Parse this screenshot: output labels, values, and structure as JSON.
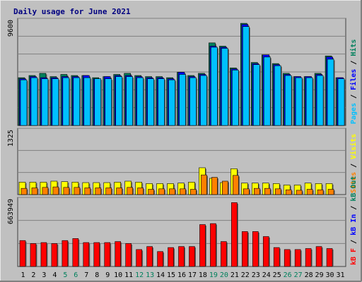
{
  "chart_data": {
    "type": "bar",
    "title": "Daily usage for June 2021",
    "days": [
      "1",
      "2",
      "3",
      "4",
      "5",
      "6",
      "7",
      "8",
      "9",
      "10",
      "11",
      "12",
      "13",
      "14",
      "15",
      "16",
      "17",
      "18",
      "19",
      "20",
      "21",
      "22",
      "23",
      "24",
      "25",
      "26",
      "27",
      "28",
      "29",
      "30",
      "31"
    ],
    "weekend_days": [
      "5",
      "6",
      "12",
      "13",
      "19",
      "20",
      "26",
      "27"
    ],
    "panels": [
      {
        "id": "hits",
        "ymax_label": "9600",
        "ymax": 9600,
        "series": [
          {
            "name": "Hits",
            "color": "#00805c",
            "values": [
              4400,
              4600,
              4800,
              4500,
              4700,
              4600,
              4600,
              4400,
              4500,
              4700,
              4800,
              4600,
              4500,
              4500,
              4400,
              4900,
              4600,
              4800,
              7600,
              7300,
              5300,
              9400,
              5800,
              6500,
              5700,
              4800,
              4500,
              4500,
              4800,
              6400,
              4400
            ]
          },
          {
            "name": "Files",
            "color": "#0000ff",
            "values": [
              4300,
              4500,
              4400,
              4400,
              4500,
              4500,
              4600,
              4300,
              4500,
              4600,
              4600,
              4500,
              4400,
              4400,
              4300,
              4900,
              4500,
              4700,
              7300,
              7200,
              5200,
              9300,
              5700,
              6500,
              5600,
              4700,
              4500,
              4500,
              4700,
              6300,
              4400
            ]
          },
          {
            "name": "Pages",
            "color": "#00c0ff",
            "values": [
              4200,
              4400,
              4300,
              4300,
              4400,
              4400,
              4400,
              4300,
              4300,
              4500,
              4500,
              4400,
              4300,
              4300,
              4200,
              4700,
              4400,
              4600,
              7200,
              7100,
              5100,
              9100,
              5600,
              6300,
              5500,
              4600,
              4400,
              4400,
              4600,
              6100,
              4300
            ]
          }
        ],
        "side_labels": [
          {
            "text": "Pages",
            "color": "#00c0ff"
          },
          {
            "text": " / ",
            "color": "#000000"
          },
          {
            "text": "Files",
            "color": "#0000ff"
          },
          {
            "text": " / ",
            "color": "#000000"
          },
          {
            "text": "Hits",
            "color": "#00805c"
          }
        ]
      },
      {
        "id": "visits",
        "ymax_label": "1325",
        "ymax": 1325,
        "series": [
          {
            "name": "Visits",
            "color": "#ffff00",
            "values": [
              260,
              260,
              260,
              280,
              270,
              260,
              250,
              250,
              250,
              260,
              280,
              260,
              230,
              230,
              230,
              240,
              260,
              560,
              340,
              250,
              540,
              240,
              240,
              240,
              230,
              200,
              200,
              240,
              230,
              230,
              0
            ]
          },
          {
            "name": "Sites",
            "color": "#ff8000",
            "values": [
              130,
              140,
              150,
              160,
              150,
              150,
              140,
              140,
              140,
              140,
              150,
              140,
              110,
              120,
              120,
              120,
              110,
              410,
              360,
              280,
              400,
              120,
              130,
              130,
              120,
              100,
              90,
              110,
              100,
              110,
              0
            ]
          }
        ],
        "side_labels": [
          {
            "text": "Sites",
            "color": "#ff8000"
          },
          {
            "text": " / ",
            "color": "#000000"
          },
          {
            "text": "Visits",
            "color": "#ffff00"
          }
        ]
      },
      {
        "id": "kbytes",
        "ymax_label": "663949",
        "ymax": 663949,
        "series": [
          {
            "name": "kB F",
            "color": "#ff0000",
            "values": [
              260000,
              230000,
              240000,
              230000,
              260000,
              280000,
              240000,
              240000,
              240000,
              250000,
              230000,
              170000,
              200000,
              150000,
              190000,
              200000,
              200000,
              420000,
              430000,
              250000,
              640000,
              350000,
              350000,
              300000,
              190000,
              170000,
              170000,
              180000,
              200000,
              180000,
              0
            ]
          }
        ],
        "side_labels": [
          {
            "text": "kB F",
            "color": "#ff0000"
          },
          {
            "text": " / ",
            "color": "#000000"
          },
          {
            "text": "kB In",
            "color": "#0000ff"
          },
          {
            "text": " / ",
            "color": "#000000"
          },
          {
            "text": "kB Out",
            "color": "#00805c"
          }
        ]
      }
    ]
  },
  "colors": {
    "frame_bg": "#c0c0c0",
    "plot_bg": "#c0c0c0",
    "grid": "#808080",
    "weekday_label": "#000000",
    "weekend_label": "#00805c"
  }
}
